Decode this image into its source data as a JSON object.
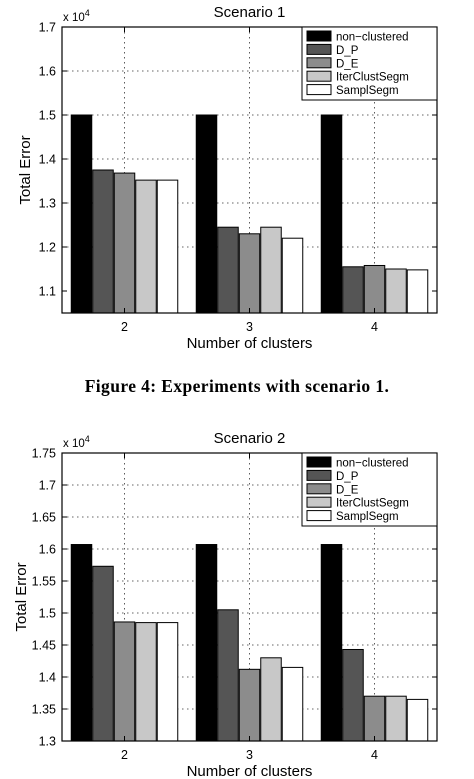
{
  "figure1": {
    "chart_data": {
      "type": "bar",
      "title": "Scenario 1",
      "xlabel": "Number of clusters",
      "ylabel": "Total Error",
      "y_multiplier_label": "x 10",
      "y_multiplier_exponent": "4",
      "categories": [
        "2",
        "3",
        "4"
      ],
      "ylim": [
        1.05,
        1.7
      ],
      "yticks": [
        1.1,
        1.2,
        1.3,
        1.4,
        1.5,
        1.6,
        1.7
      ],
      "ytick_labels": [
        "1.1",
        "1.2",
        "1.3",
        "1.4",
        "1.5",
        "1.6",
        "1.7"
      ],
      "grid": true,
      "legend_position": "top-right",
      "series": [
        {
          "name": "non−clustered",
          "color": "#000000",
          "values": [
            1.5,
            1.5,
            1.5
          ]
        },
        {
          "name": "D_P",
          "color": "#555555",
          "values": [
            1.375,
            1.245,
            1.155
          ]
        },
        {
          "name": "D_E",
          "color": "#8c8c8c",
          "values": [
            1.368,
            1.23,
            1.158
          ]
        },
        {
          "name": "IterClustSegm",
          "color": "#c8c8c8",
          "values": [
            1.352,
            1.245,
            1.15
          ]
        },
        {
          "name": "SamplSegm",
          "color": "#ffffff",
          "values": [
            1.352,
            1.22,
            1.148
          ]
        }
      ]
    }
  },
  "caption1": "Figure 4: Experiments with scenario 1.",
  "figure2": {
    "chart_data": {
      "type": "bar",
      "title": "Scenario 2",
      "xlabel": "Number of clusters",
      "ylabel": "Total Error",
      "y_multiplier_label": "x 10",
      "y_multiplier_exponent": "4",
      "categories": [
        "2",
        "3",
        "4"
      ],
      "ylim": [
        1.3,
        1.75
      ],
      "yticks": [
        1.3,
        1.35,
        1.4,
        1.45,
        1.5,
        1.55,
        1.6,
        1.65,
        1.7,
        1.75
      ],
      "ytick_labels": [
        "1.3",
        "1.35",
        "1.4",
        "1.45",
        "1.5",
        "1.55",
        "1.6",
        "1.65",
        "1.7",
        "1.75"
      ],
      "grid": true,
      "legend_position": "top-right",
      "series": [
        {
          "name": "non−clustered",
          "color": "#000000",
          "values": [
            1.607,
            1.607,
            1.607
          ]
        },
        {
          "name": "D_P",
          "color": "#555555",
          "values": [
            1.573,
            1.505,
            1.443
          ]
        },
        {
          "name": "D_E",
          "color": "#8c8c8c",
          "values": [
            1.486,
            1.412,
            1.37
          ]
        },
        {
          "name": "IterClustSegm",
          "color": "#c8c8c8",
          "values": [
            1.485,
            1.43,
            1.37
          ]
        },
        {
          "name": "SamplSegm",
          "color": "#ffffff",
          "values": [
            1.485,
            1.415,
            1.365
          ]
        }
      ]
    }
  }
}
